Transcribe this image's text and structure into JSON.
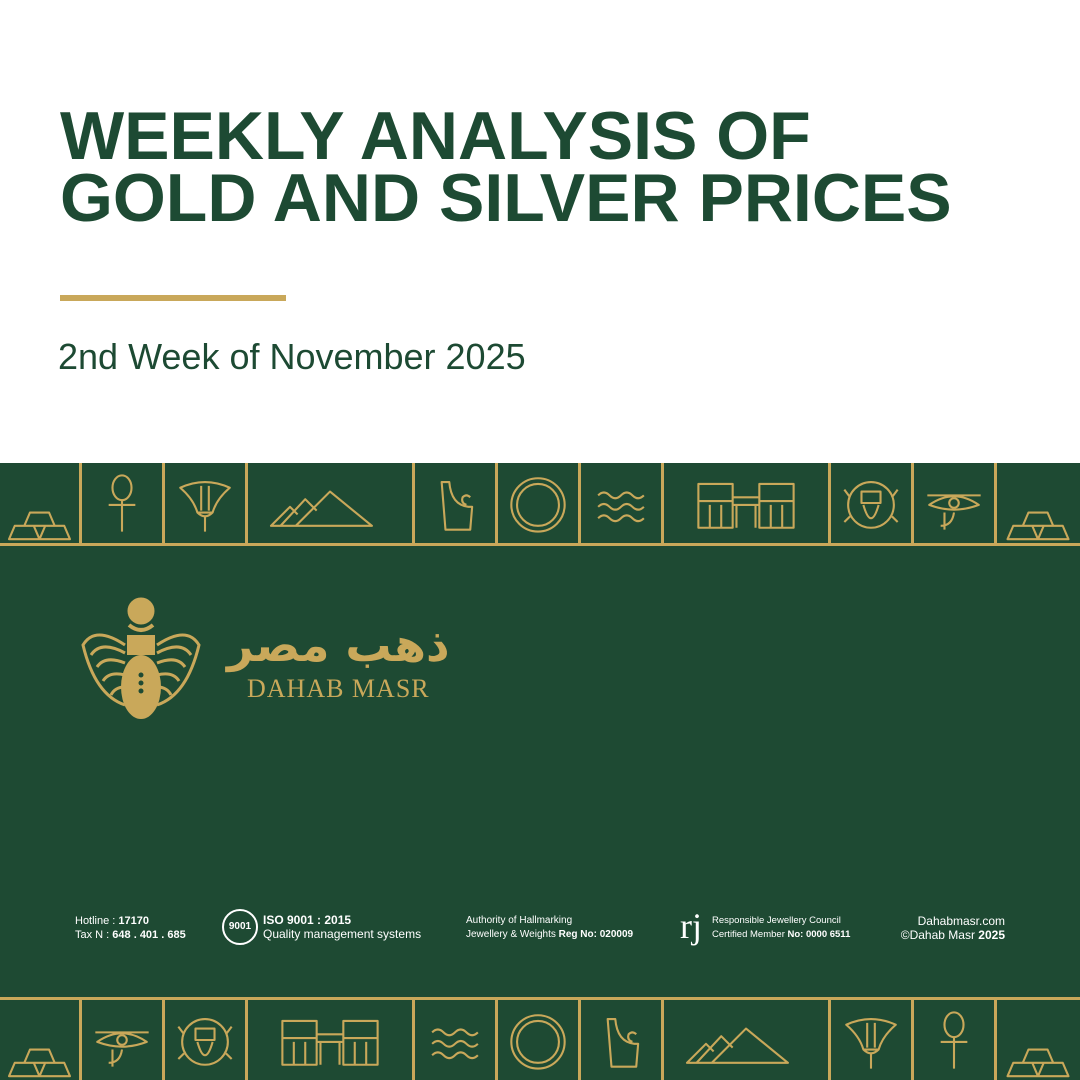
{
  "header": {
    "title_line1": "WEEKLY ANALYSIS OF",
    "title_line2": "GOLD AND SILVER PRICES",
    "subtitle": "2nd Week of November 2025"
  },
  "colors": {
    "green": "#1e4a33",
    "gold": "#c9a85a",
    "title": "#1d4a33"
  },
  "top_strip": [
    "gold-bars-icon",
    "ankh-icon",
    "lotus-icon",
    "pyramids-icon",
    "vase-icon",
    "ring-icon",
    "waves-icon",
    "temple-icon",
    "scarab-icon",
    "eye-of-horus-icon",
    "gold-bars-icon"
  ],
  "bottom_strip": [
    "gold-bars-icon",
    "eye-of-horus-icon",
    "scarab-icon",
    "temple-icon",
    "waves-icon",
    "ring-icon",
    "vase-icon",
    "pyramids-icon",
    "lotus-icon",
    "ankh-icon",
    "gold-bars-icon"
  ],
  "brand": {
    "arabic": "ذهب مصر",
    "english": "DAHAB MASR"
  },
  "footer": {
    "hotline_label": "Hotline : ",
    "hotline": "17170",
    "tax_label": "Tax N : ",
    "tax": "648 . 401 . 685",
    "iso_title": "ISO 9001 : 2015",
    "iso_sub": "Quality management systems",
    "iso_badge": "9001",
    "hallmark_line1": "Authority of Hallmarking",
    "hallmark_line2": "Jewellery & Weights ",
    "hallmark_reg": "Reg No: 020009",
    "rjc_line1": "Responsible Jewellery Council",
    "rjc_line2": "Certified Member ",
    "rjc_no": "No: 0000 6511",
    "website": "Dahabmasr.com",
    "copyright": "©Dahab Masr ",
    "year": "2025"
  }
}
